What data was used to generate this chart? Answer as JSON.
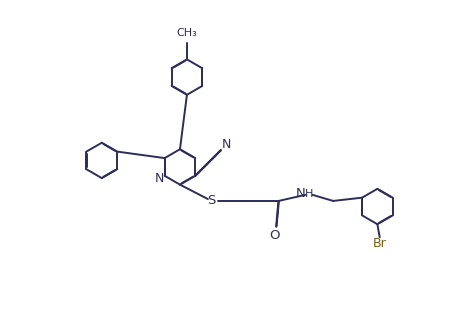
{
  "bg_color": "#ffffff",
  "line_color": "#2d2d5a",
  "br_color": "#7a6010",
  "figsize": [
    4.67,
    3.12
  ],
  "dpi": 100,
  "bond_lw": 1.4,
  "dbl_off": 0.006,
  "ring_r": 0.38,
  "xlim": [
    0,
    10
  ],
  "ylim": [
    0,
    6.67
  ]
}
